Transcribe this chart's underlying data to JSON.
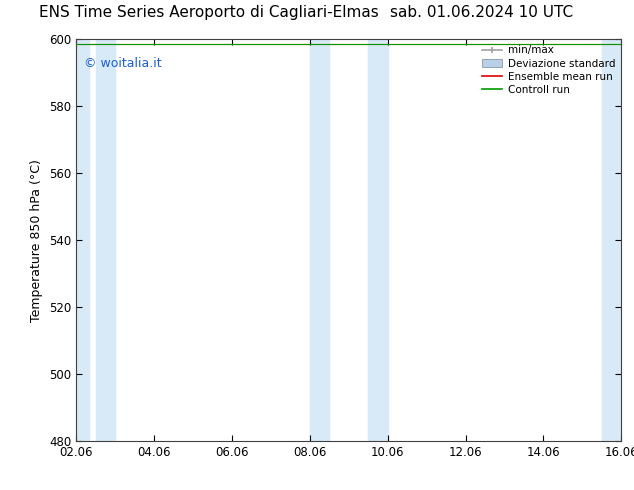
{
  "title_left": "ENS Time Series Aeroporto di Cagliari-Elmas",
  "title_right": "sab. 01.06.2024 10 UTC",
  "ylabel": "Temperature 850 hPa (°C)",
  "ylim": [
    480,
    600
  ],
  "yticks": [
    480,
    500,
    520,
    540,
    560,
    580,
    600
  ],
  "xtick_labels": [
    "02.06",
    "04.06",
    "06.06",
    "08.06",
    "10.06",
    "12.06",
    "14.06",
    "16.06"
  ],
  "xtick_positions": [
    2,
    4,
    6,
    8,
    10,
    12,
    14,
    16
  ],
  "watermark": "© woitalia.it",
  "watermark_color": "#1a60cc",
  "shade_ranges": [
    [
      2.0,
      2.33
    ],
    [
      2.5,
      3.0
    ],
    [
      8.0,
      8.5
    ],
    [
      9.5,
      10.0
    ],
    [
      15.5,
      16.0
    ]
  ],
  "shade_color": "#d8eaf8",
  "background_color": "#ffffff",
  "legend_items": [
    "min/max",
    "Deviazione standard",
    "Ensemble mean run",
    "Controll run"
  ],
  "legend_colors_line": [
    "#a0a0a0",
    "#b8d0e8",
    "#dd0000",
    "#009900"
  ],
  "data_y": 598.5,
  "title_fontsize": 11,
  "tick_fontsize": 8.5,
  "ylabel_fontsize": 9,
  "legend_fontsize": 7.5
}
